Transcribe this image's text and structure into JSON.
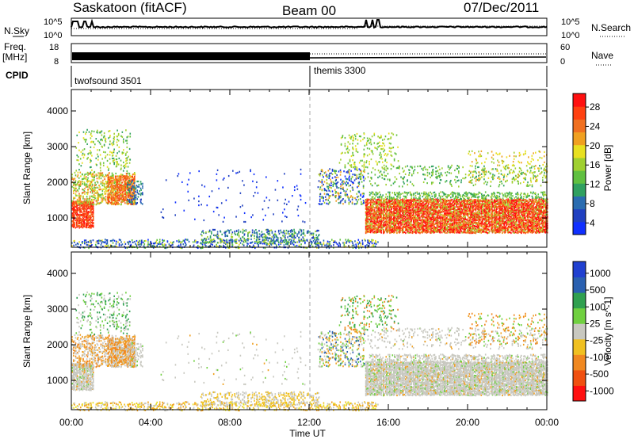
{
  "header": {
    "station": "Saskatoon (fitACF)",
    "beam": "Beam 00",
    "date": "07/Dec/2011"
  },
  "panels": {
    "nsky": {
      "left_label": "N.Sky",
      "left_ticks": [
        "10^5",
        "10^0"
      ],
      "right_ticks": [
        "10^5",
        "10^0"
      ],
      "right_label": "N.Search"
    },
    "freq": {
      "left_label": "Freq.",
      "unit": "[MHz]",
      "left_ticks": [
        "18",
        "8"
      ],
      "right_ticks": [
        "60",
        "0"
      ],
      "right_label": "Nave"
    },
    "cpid": {
      "label": "CPID",
      "modes": [
        {
          "name": "twofsound 3501",
          "start_hour": 0
        },
        {
          "name": "themis 3300",
          "start_hour": 12
        }
      ]
    }
  },
  "chart_data": [
    {
      "type": "heatmap",
      "ylabel": "Slant Range [km]",
      "xlabel": "Time UT",
      "ylim": [
        180,
        4600
      ],
      "xlim": [
        0,
        24
      ],
      "yticks": [
        "1000",
        "2000",
        "3000",
        "4000"
      ],
      "xticks": [
        "00:00",
        "04:00",
        "08:00",
        "12:00",
        "16:00",
        "20:00",
        "00:00"
      ],
      "colorbar": {
        "label": "Power [dB]",
        "ticks": [
          "4",
          "8",
          "12",
          "16",
          "20",
          "24",
          "28"
        ],
        "colors": [
          "#1030ff",
          "#2040c0",
          "#2a6cb0",
          "#30a060",
          "#60c040",
          "#a0d030",
          "#e8e020",
          "#f0a020",
          "#f07020",
          "#ff4010",
          "#ff1010"
        ]
      }
    },
    {
      "type": "heatmap",
      "ylabel": "Slant Range [km]",
      "xlabel": "Time UT",
      "ylim": [
        180,
        4600
      ],
      "xlim": [
        0,
        24
      ],
      "yticks": [
        "1000",
        "2000",
        "3000",
        "4000"
      ],
      "xticks": [
        "00:00",
        "04:00",
        "08:00",
        "12:00",
        "16:00",
        "20:00",
        "00:00"
      ],
      "colorbar": {
        "label": "Velocity [m s^-1]",
        "ticks": [
          "1000",
          "500",
          "100",
          "25",
          "-25",
          "-100",
          "-500",
          "-1000"
        ],
        "colors": [
          "#2040d0",
          "#2a60b0",
          "#30a050",
          "#70d040",
          "#c8c8c0",
          "#f0c020",
          "#f08820",
          "#f05010",
          "#ff1010"
        ]
      }
    }
  ]
}
